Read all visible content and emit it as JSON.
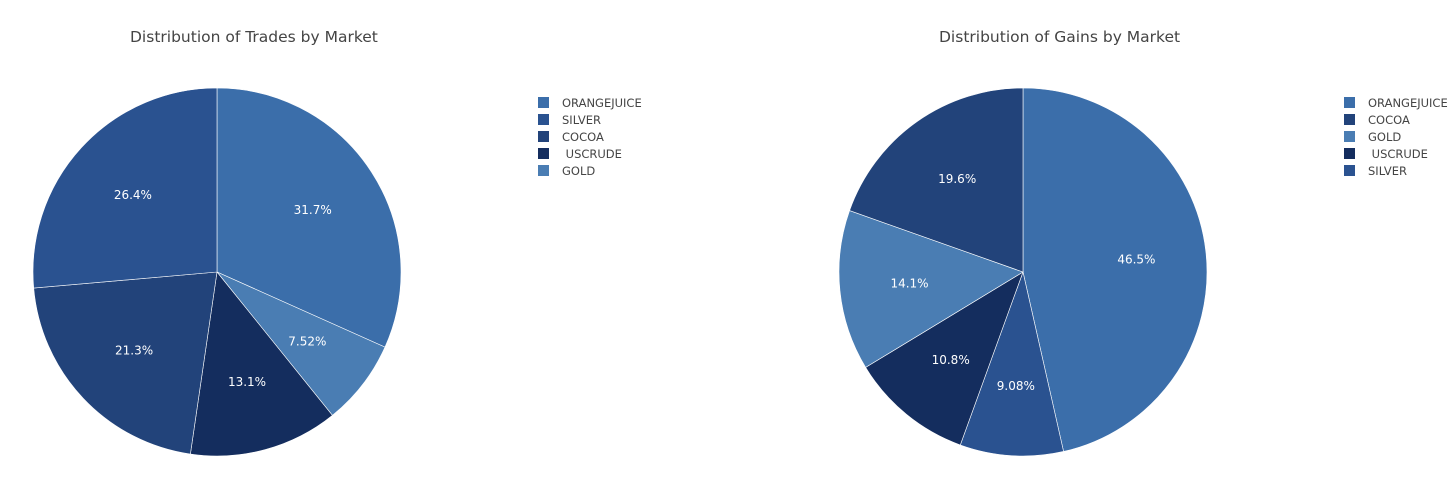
{
  "chart_data": [
    {
      "type": "pie",
      "title": "Distribution of Trades by Market",
      "legend_position": "right",
      "slices": [
        {
          "label": "ORANGEJUICE",
          "percent": 31.7,
          "display": "31.7%",
          "color": "#3b6eaa"
        },
        {
          "label": "GOLD",
          "percent": 7.52,
          "display": "7.52%",
          "color": "#4a7db3"
        },
        {
          "label": " USCRUDE",
          "percent": 13.1,
          "display": "13.1%",
          "color": "#142d5e"
        },
        {
          "label": "COCOA",
          "percent": 21.3,
          "display": "21.3%",
          "color": "#22437a"
        },
        {
          "label": "SILVER",
          "percent": 26.4,
          "display": "26.4%",
          "color": "#2a5290"
        }
      ],
      "legend": [
        {
          "label": "ORANGEJUICE",
          "color": "#3b6eaa"
        },
        {
          "label": "SILVER",
          "color": "#2a5290"
        },
        {
          "label": "COCOA",
          "color": "#22437a"
        },
        {
          "label": " USCRUDE",
          "color": "#142d5e"
        },
        {
          "label": "GOLD",
          "color": "#4a7db3"
        }
      ]
    },
    {
      "type": "pie",
      "title": "Distribution of Gains by Market",
      "legend_position": "right",
      "slices": [
        {
          "label": "ORANGEJUICE",
          "percent": 46.5,
          "display": "46.5%",
          "color": "#3b6eaa"
        },
        {
          "label": "SILVER",
          "percent": 9.08,
          "display": "9.08%",
          "color": "#2a5290"
        },
        {
          "label": " USCRUDE",
          "percent": 10.8,
          "display": "10.8%",
          "color": "#142d5e"
        },
        {
          "label": "GOLD",
          "percent": 14.1,
          "display": "14.1%",
          "color": "#4a7db3"
        },
        {
          "label": "COCOA",
          "percent": 19.6,
          "display": "19.6%",
          "color": "#22437a"
        }
      ],
      "legend": [
        {
          "label": "ORANGEJUICE",
          "color": "#3b6eaa"
        },
        {
          "label": "COCOA",
          "color": "#22437a"
        },
        {
          "label": "GOLD",
          "color": "#4a7db3"
        },
        {
          "label": " USCRUDE",
          "color": "#142d5e"
        },
        {
          "label": "SILVER",
          "color": "#2a5290"
        }
      ]
    }
  ]
}
